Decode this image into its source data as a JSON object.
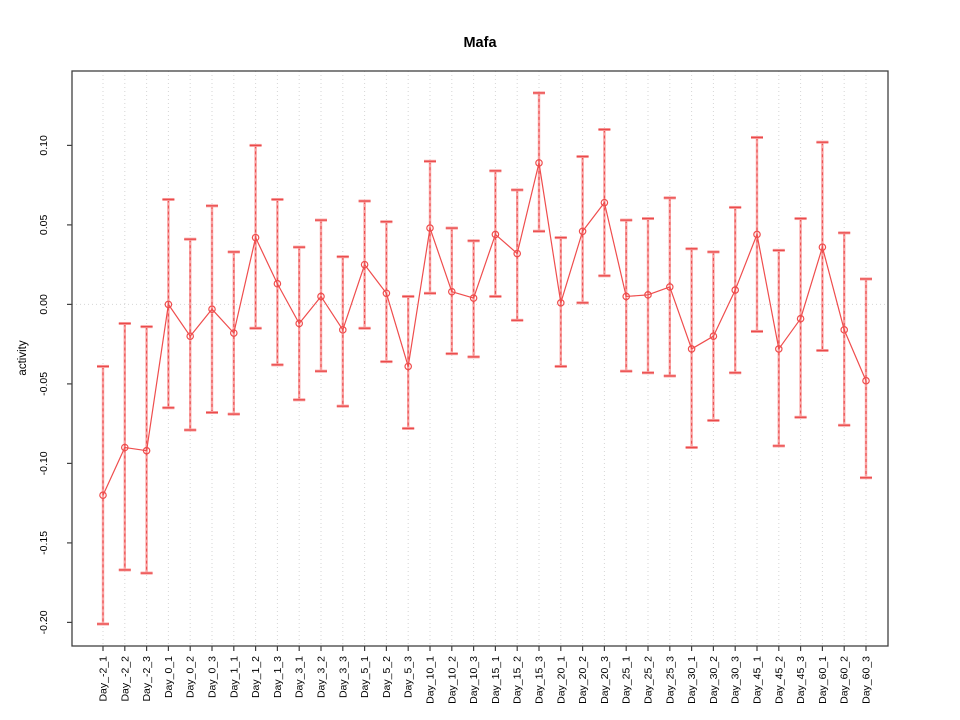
{
  "chart_data": {
    "type": "scatter",
    "subtype": "means-with-error-bars",
    "title": "Mafa",
    "xlabel": "",
    "ylabel": "activity",
    "ylim": [
      -0.215,
      0.147
    ],
    "grid": {
      "vertical": "dotted-per-category",
      "horizontal": "dotted-zero-line-only"
    },
    "legend": "none",
    "ytick_labels": [
      "0.10",
      "0.05",
      "0.00",
      "-0.05",
      "-0.10",
      "-0.15",
      "-0.20"
    ],
    "ytick_values": [
      0.1,
      0.05,
      0.0,
      -0.05,
      -0.1,
      -0.15,
      -0.2
    ],
    "categories": [
      "Day_-2_1",
      "Day_-2_2",
      "Day_-2_3",
      "Day_0_1",
      "Day_0_2",
      "Day_0_3",
      "Day_1_1",
      "Day_1_2",
      "Day_1_3",
      "Day_3_1",
      "Day_3_2",
      "Day_3_3",
      "Day_5_1",
      "Day_5_2",
      "Day_5_3",
      "Day_10_1",
      "Day_10_2",
      "Day_10_3",
      "Day_15_1",
      "Day_15_2",
      "Day_15_3",
      "Day_20_1",
      "Day_20_2",
      "Day_20_3",
      "Day_25_1",
      "Day_25_2",
      "Day_25_3",
      "Day_30_1",
      "Day_30_2",
      "Day_30_3",
      "Day_45_1",
      "Day_45_2",
      "Day_45_3",
      "Day_60_1",
      "Day_60_2",
      "Day_60_3"
    ],
    "series": [
      {
        "name": "activity",
        "values": [
          -0.12,
          -0.09,
          -0.092,
          0.0,
          -0.02,
          -0.003,
          -0.018,
          0.042,
          0.013,
          -0.012,
          0.005,
          -0.016,
          0.025,
          0.007,
          -0.039,
          0.048,
          0.008,
          0.004,
          0.044,
          0.032,
          0.089,
          0.001,
          0.046,
          0.064,
          0.005,
          0.006,
          0.011,
          -0.028,
          -0.02,
          0.009,
          0.044,
          -0.028,
          -0.009,
          0.036,
          -0.016,
          -0.048
        ],
        "ci_high": [
          -0.039,
          -0.012,
          -0.014,
          0.066,
          0.041,
          0.062,
          0.033,
          0.1,
          0.066,
          0.036,
          0.053,
          0.03,
          0.065,
          0.052,
          0.005,
          0.09,
          0.048,
          0.04,
          0.084,
          0.072,
          0.133,
          0.042,
          0.093,
          0.11,
          0.053,
          0.054,
          0.067,
          0.035,
          0.033,
          0.061,
          0.105,
          0.034,
          0.054,
          0.102,
          0.045,
          0.016
        ],
        "ci_low": [
          -0.201,
          -0.167,
          -0.169,
          -0.065,
          -0.079,
          -0.068,
          -0.069,
          -0.015,
          -0.038,
          -0.06,
          -0.042,
          -0.064,
          -0.015,
          -0.036,
          -0.078,
          0.007,
          -0.031,
          -0.033,
          0.005,
          -0.01,
          0.046,
          -0.039,
          0.001,
          0.018,
          -0.042,
          -0.043,
          -0.045,
          -0.09,
          -0.073,
          -0.043,
          -0.017,
          -0.089,
          -0.071,
          -0.029,
          -0.076,
          -0.109
        ]
      }
    ],
    "colors": {
      "point_line": "#ef4d4d",
      "error_bar_fill": "#f9a2a2",
      "error_bar_dash": "#ea4a4a",
      "grid": "#d6d6d6",
      "axis": "#404040",
      "text": "#000000"
    }
  }
}
